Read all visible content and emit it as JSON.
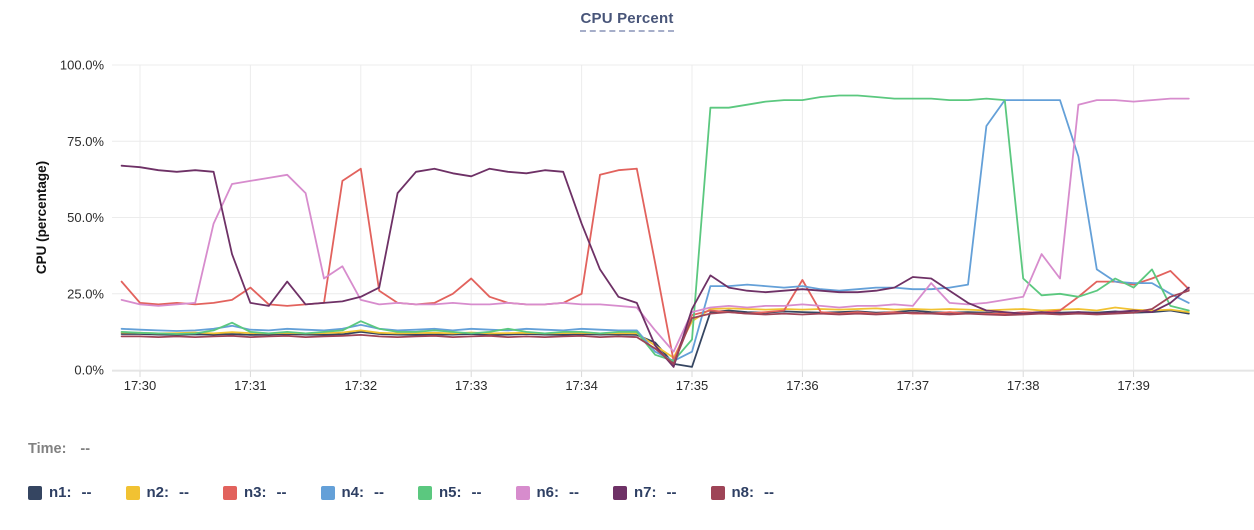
{
  "title": {
    "text": "CPU Percent"
  },
  "legend": {
    "time_label": "Time:",
    "time_value": "--"
  },
  "chart_data": {
    "type": "line",
    "title": "CPU Percent",
    "xlabel": "",
    "ylabel": "CPU (percentage)",
    "ylim": [
      0,
      100
    ],
    "grid": true,
    "legend_position": "bottom",
    "y_tick_labels": [
      "100.0%",
      "75.0%",
      "50.0%",
      "25.0%",
      "0.0%"
    ],
    "y_tick_values": [
      100,
      75,
      50,
      25,
      0
    ],
    "x_tick_labels": [
      "17:30",
      "17:31",
      "17:32",
      "17:33",
      "17:34",
      "17:35",
      "17:36",
      "17:37",
      "17:38",
      "17:39"
    ],
    "x_start_time": "17:29:50",
    "x_interval_seconds": 10,
    "x_first_point_offset_seconds": -10,
    "series": [
      {
        "name": "n1",
        "color": "#354561",
        "legend_value": "--",
        "values": [
          11.8,
          11.8,
          11.6,
          11.5,
          11.7,
          11.6,
          11.8,
          11.5,
          11.6,
          11.8,
          11.6,
          11.5,
          11.7,
          12.5,
          11.8,
          11.6,
          11.5,
          11.7,
          11.6,
          11.8,
          11.5,
          11.6,
          11.8,
          11.6,
          11.5,
          11.8,
          11.6,
          11.7,
          11.5,
          9.0,
          2.0,
          1.0,
          19.0,
          19.5,
          19.0,
          18.8,
          19.2,
          19.0,
          18.8,
          19.0,
          19.2,
          18.8,
          19.0,
          19.5,
          19.0,
          18.8,
          19.0,
          18.8,
          18.5,
          18.8,
          19.0,
          18.8,
          19.0,
          18.8,
          19.2,
          18.8,
          19.0,
          19.5,
          18.5
        ]
      },
      {
        "name": "n2",
        "color": "#f1c232",
        "legend_value": "--",
        "values": [
          12.3,
          12.2,
          12.0,
          12.1,
          12.3,
          12.0,
          12.4,
          12.1,
          12.0,
          12.2,
          12.0,
          12.1,
          12.3,
          13.0,
          12.2,
          12.0,
          12.1,
          12.2,
          12.0,
          12.3,
          12.0,
          12.1,
          12.2,
          12.0,
          12.1,
          12.2,
          12.0,
          12.1,
          12.0,
          8.0,
          4.0,
          16.0,
          20.0,
          20.2,
          20.0,
          19.8,
          20.0,
          19.8,
          20.0,
          19.8,
          20.0,
          20.2,
          19.8,
          20.0,
          19.8,
          20.0,
          19.8,
          19.5,
          19.8,
          20.0,
          19.5,
          19.8,
          20.0,
          19.5,
          20.5,
          19.8,
          19.5,
          19.8,
          19.0
        ]
      },
      {
        "name": "n3",
        "color": "#e2625d",
        "legend_value": "--",
        "values": [
          29.0,
          22.0,
          21.5,
          22.0,
          21.5,
          22.0,
          23.0,
          27.0,
          21.5,
          21.0,
          21.5,
          22.0,
          62.0,
          66.0,
          26.0,
          22.0,
          21.5,
          22.0,
          25.0,
          30.0,
          24.0,
          22.0,
          21.5,
          21.5,
          22.0,
          25.0,
          64.0,
          65.5,
          66.0,
          35.0,
          3.0,
          18.0,
          19.5,
          19.0,
          18.5,
          19.0,
          19.5,
          29.5,
          19.0,
          18.5,
          19.0,
          18.5,
          19.0,
          18.5,
          18.5,
          19.0,
          18.5,
          18.5,
          18.5,
          19.0,
          18.8,
          19.5,
          24.0,
          29.0,
          29.0,
          28.0,
          30.0,
          32.5,
          26.5
        ]
      },
      {
        "name": "n4",
        "color": "#64a0d8",
        "legend_value": "--",
        "values": [
          13.5,
          13.2,
          13.0,
          12.8,
          13.0,
          13.5,
          14.5,
          13.2,
          13.0,
          13.5,
          13.2,
          13.0,
          13.5,
          14.8,
          13.5,
          13.0,
          13.2,
          13.5,
          13.0,
          13.5,
          13.2,
          13.0,
          13.5,
          13.2,
          13.0,
          13.5,
          13.2,
          13.0,
          13.0,
          6.0,
          3.0,
          6.0,
          27.5,
          27.5,
          28.0,
          27.5,
          27.0,
          27.5,
          26.5,
          26.0,
          26.5,
          27.0,
          27.0,
          26.5,
          26.5,
          27.0,
          28.0,
          80.0,
          88.5,
          88.5,
          88.5,
          88.5,
          70.0,
          33.0,
          29.0,
          28.5,
          28.5,
          25.0,
          22.0
        ]
      },
      {
        "name": "n5",
        "color": "#5bc87f",
        "legend_value": "--",
        "values": [
          12.5,
          12.2,
          12.0,
          11.8,
          12.0,
          13.0,
          15.5,
          12.5,
          12.0,
          12.5,
          12.0,
          12.5,
          13.0,
          16.0,
          13.5,
          12.5,
          12.5,
          13.0,
          12.5,
          12.0,
          12.5,
          13.5,
          12.5,
          12.0,
          12.5,
          12.5,
          12.0,
          12.5,
          12.5,
          5.0,
          3.0,
          10.0,
          86.0,
          86.0,
          87.0,
          88.0,
          88.5,
          88.5,
          89.5,
          90.0,
          90.0,
          89.5,
          89.0,
          89.0,
          89.0,
          88.5,
          88.5,
          89.0,
          88.5,
          30.0,
          24.5,
          25.0,
          24.0,
          26.0,
          30.0,
          27.0,
          33.0,
          21.0,
          19.5
        ]
      },
      {
        "name": "n6",
        "color": "#d78ccd",
        "legend_value": "--",
        "values": [
          23.0,
          21.5,
          21.0,
          21.5,
          22.0,
          48.0,
          61.0,
          62.0,
          63.0,
          64.0,
          58.0,
          30.0,
          34.0,
          23.0,
          21.5,
          22.0,
          21.5,
          21.5,
          22.0,
          21.5,
          21.5,
          22.0,
          21.5,
          21.5,
          22.0,
          21.5,
          21.5,
          21.0,
          20.5,
          13.0,
          6.0,
          19.0,
          20.5,
          21.0,
          20.5,
          21.0,
          21.0,
          21.5,
          21.0,
          20.5,
          21.0,
          21.0,
          21.5,
          21.0,
          28.5,
          22.0,
          21.5,
          22.0,
          23.0,
          24.0,
          38.0,
          30.0,
          87.0,
          88.5,
          88.5,
          88.0,
          88.5,
          89.0,
          89.0
        ]
      },
      {
        "name": "n7",
        "color": "#6e3166",
        "legend_value": "--",
        "values": [
          67.0,
          66.5,
          65.5,
          65.0,
          65.5,
          65.0,
          38.0,
          22.0,
          21.0,
          29.0,
          21.5,
          22.0,
          22.5,
          24.0,
          27.0,
          58.0,
          65.0,
          66.0,
          64.5,
          63.5,
          66.0,
          65.0,
          64.5,
          65.5,
          65.0,
          48.0,
          33.0,
          24.0,
          22.0,
          8.0,
          1.0,
          20.0,
          31.0,
          27.0,
          26.0,
          25.5,
          26.0,
          26.5,
          26.0,
          25.5,
          25.5,
          26.0,
          27.0,
          30.5,
          30.0,
          26.0,
          22.0,
          19.5,
          19.0,
          18.5,
          19.0,
          18.5,
          19.0,
          18.5,
          19.0,
          19.5,
          19.0,
          22.0,
          27.0
        ]
      },
      {
        "name": "n8",
        "color": "#9e4457",
        "legend_value": "--",
        "values": [
          11.0,
          11.0,
          10.8,
          11.0,
          10.8,
          11.0,
          11.2,
          10.8,
          11.0,
          11.2,
          10.8,
          11.0,
          11.2,
          11.5,
          11.0,
          10.8,
          11.0,
          11.2,
          10.8,
          11.0,
          11.2,
          10.8,
          11.0,
          10.8,
          11.0,
          11.2,
          10.8,
          11.0,
          10.8,
          7.0,
          2.0,
          17.0,
          18.5,
          19.0,
          18.5,
          18.2,
          18.5,
          18.2,
          18.5,
          18.2,
          18.5,
          18.2,
          18.5,
          18.8,
          18.5,
          18.2,
          18.5,
          18.2,
          18.0,
          18.2,
          18.5,
          18.2,
          18.5,
          18.2,
          18.5,
          18.8,
          20.0,
          24.0,
          26.0
        ]
      }
    ]
  }
}
